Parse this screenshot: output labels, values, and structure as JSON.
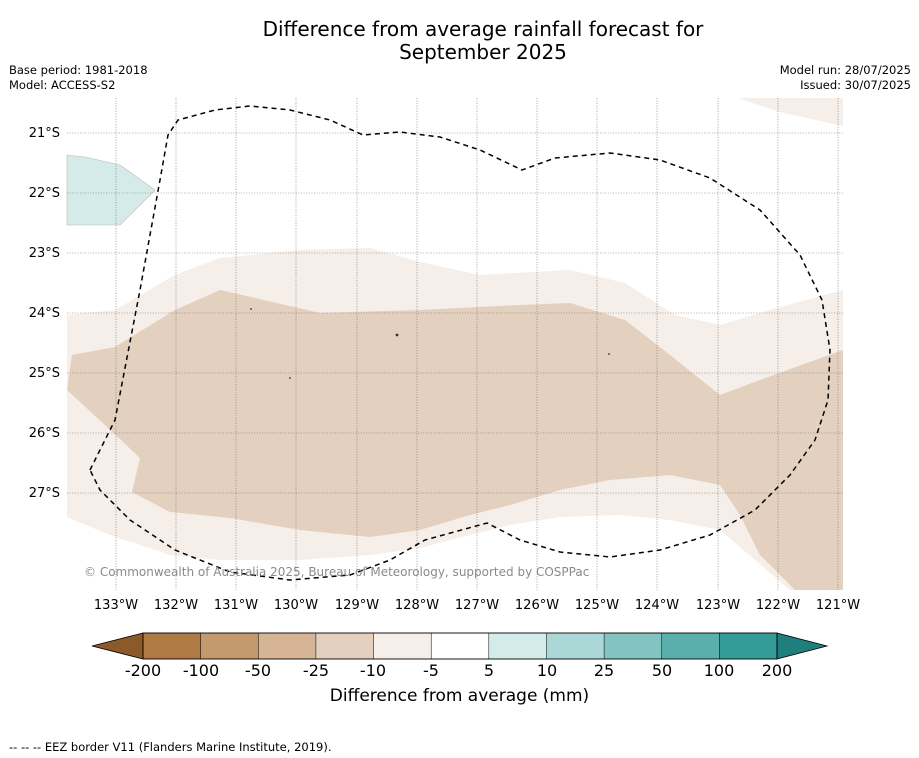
{
  "title_line1": "Difference from average rainfall forecast for",
  "title_line2": "September 2025",
  "base_period": "Base period: 1981-2018",
  "model": "Model: ACCESS-S2",
  "model_run": "Model run: 28/07/2025",
  "issued": "Issued: 30/07/2025",
  "lat_labels": [
    "21°S",
    "22°S",
    "23°S",
    "24°S",
    "25°S",
    "26°S",
    "27°S"
  ],
  "lon_labels": [
    "133°W",
    "132°W",
    "131°W",
    "130°W",
    "129°W",
    "128°W",
    "127°W",
    "126°W",
    "125°W",
    "124°W",
    "123°W",
    "122°W",
    "121°W"
  ],
  "copyright": "© Commonwealth of Australia 2025, Bureau of Meteorology, supported by COSPPac",
  "colorbar": {
    "labels": [
      "-200",
      "-100",
      "-50",
      "-25",
      "-10",
      "-5",
      "5",
      "10",
      "25",
      "50",
      "100",
      "200"
    ],
    "colors": [
      "#8c5a2a",
      "#b07a45",
      "#c49a6d",
      "#d5b595",
      "#e3d0bf",
      "#f5eee9",
      "#ffffff",
      "#d5ebe9",
      "#abd8d6",
      "#83c3c1",
      "#5aafad",
      "#339b98",
      "#1e7f7c"
    ],
    "title": "Difference from average (mm)"
  },
  "legend_footer": "--  --  -- EEZ border V11 (Flanders Marine Institute, 2019)."
}
